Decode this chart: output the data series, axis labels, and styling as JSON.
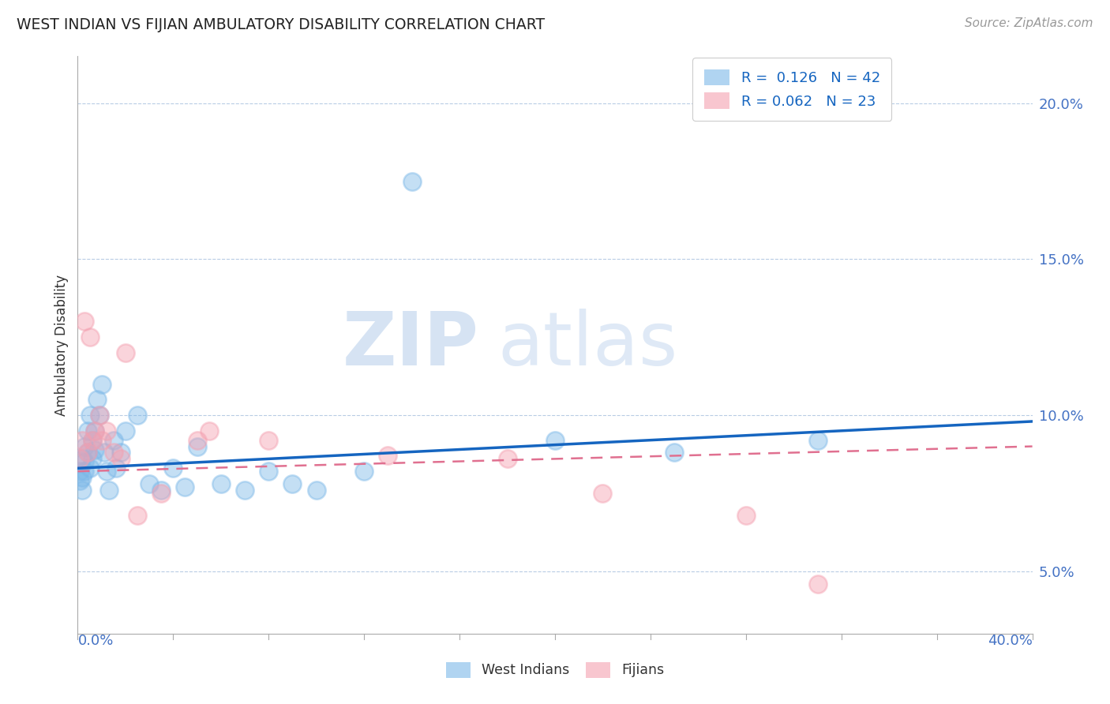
{
  "title": "WEST INDIAN VS FIJIAN AMBULATORY DISABILITY CORRELATION CHART",
  "source_text": "Source: ZipAtlas.com",
  "ylabel": "Ambulatory Disability",
  "ylabel_right_ticks": [
    "5.0%",
    "10.0%",
    "15.0%",
    "20.0%"
  ],
  "ylabel_right_vals": [
    0.05,
    0.1,
    0.15,
    0.2
  ],
  "xmin": 0.0,
  "xmax": 0.4,
  "ymin": 0.03,
  "ymax": 0.215,
  "west_indian_R": 0.126,
  "west_indian_N": 42,
  "fijian_R": 0.062,
  "fijian_N": 23,
  "west_indian_color": "#7cb8e8",
  "fijian_color": "#f4a0b0",
  "west_indian_line_color": "#1565c0",
  "fijian_line_color": "#e07090",
  "watermark_zip": "ZIP",
  "watermark_atlas": "atlas",
  "west_indians_x": [
    0.001,
    0.001,
    0.002,
    0.002,
    0.002,
    0.003,
    0.003,
    0.003,
    0.004,
    0.004,
    0.005,
    0.005,
    0.006,
    0.006,
    0.007,
    0.007,
    0.008,
    0.009,
    0.01,
    0.011,
    0.012,
    0.013,
    0.015,
    0.016,
    0.018,
    0.02,
    0.025,
    0.03,
    0.035,
    0.04,
    0.045,
    0.05,
    0.06,
    0.07,
    0.08,
    0.09,
    0.1,
    0.12,
    0.14,
    0.2,
    0.25,
    0.31
  ],
  "west_indians_y": [
    0.082,
    0.079,
    0.086,
    0.08,
    0.076,
    0.09,
    0.085,
    0.082,
    0.095,
    0.088,
    0.1,
    0.083,
    0.092,
    0.086,
    0.095,
    0.089,
    0.105,
    0.1,
    0.11,
    0.088,
    0.082,
    0.076,
    0.092,
    0.083,
    0.088,
    0.095,
    0.1,
    0.078,
    0.076,
    0.083,
    0.077,
    0.09,
    0.078,
    0.076,
    0.082,
    0.078,
    0.076,
    0.082,
    0.175,
    0.092,
    0.088,
    0.092
  ],
  "fijians_x": [
    0.001,
    0.002,
    0.003,
    0.004,
    0.005,
    0.006,
    0.007,
    0.009,
    0.01,
    0.012,
    0.015,
    0.018,
    0.02,
    0.025,
    0.035,
    0.05,
    0.055,
    0.08,
    0.13,
    0.18,
    0.22,
    0.28,
    0.31
  ],
  "fijians_y": [
    0.086,
    0.092,
    0.13,
    0.088,
    0.125,
    0.092,
    0.095,
    0.1,
    0.092,
    0.095,
    0.088,
    0.086,
    0.12,
    0.068,
    0.075,
    0.092,
    0.095,
    0.092,
    0.087,
    0.086,
    0.075,
    0.068,
    0.046
  ],
  "wi_line_x0": 0.0,
  "wi_line_x1": 0.4,
  "wi_line_y0": 0.083,
  "wi_line_y1": 0.098,
  "fij_line_x0": 0.0,
  "fij_line_x1": 0.4,
  "fij_line_y0": 0.082,
  "fij_line_y1": 0.09
}
